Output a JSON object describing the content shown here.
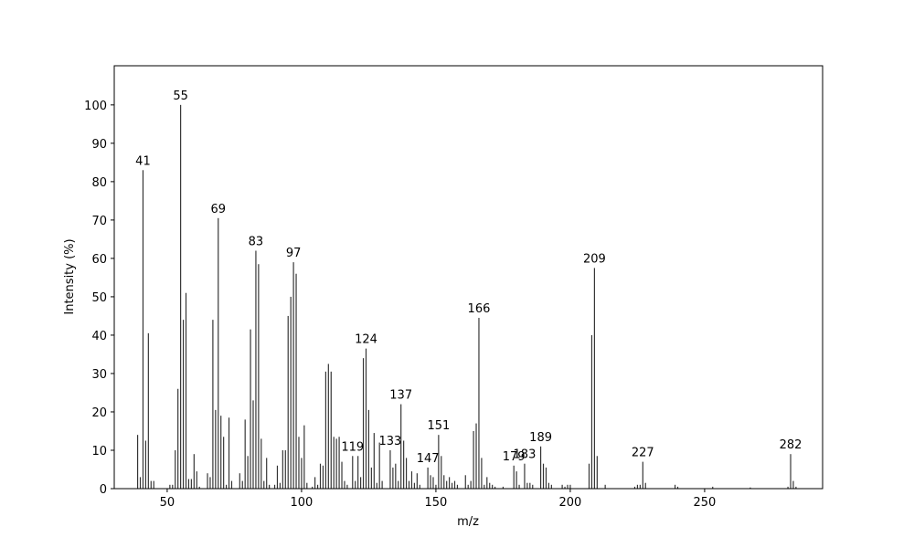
{
  "chart_data": {
    "type": "bar",
    "xlabel": "m/z",
    "ylabel": "Intensity (%)",
    "color": "#333333",
    "x": [
      39,
      40,
      41,
      42,
      43,
      44,
      45,
      51,
      52,
      53,
      54,
      55,
      56,
      57,
      58,
      59,
      60,
      61,
      62,
      65,
      66,
      67,
      68,
      69,
      70,
      71,
      72,
      73,
      74,
      77,
      78,
      79,
      80,
      81,
      82,
      83,
      84,
      85,
      86,
      87,
      88,
      90,
      91,
      92,
      93,
      94,
      95,
      96,
      97,
      98,
      99,
      100,
      101,
      102,
      104,
      105,
      106,
      107,
      108,
      109,
      110,
      111,
      112,
      113,
      114,
      115,
      116,
      117,
      119,
      120,
      121,
      122,
      123,
      124,
      125,
      126,
      127,
      128,
      129,
      130,
      133,
      134,
      135,
      136,
      137,
      138,
      139,
      140,
      141,
      142,
      143,
      144,
      147,
      148,
      149,
      150,
      151,
      152,
      153,
      154,
      155,
      156,
      157,
      158,
      161,
      162,
      163,
      164,
      165,
      166,
      167,
      168,
      169,
      170,
      171,
      172,
      175,
      179,
      180,
      181,
      183,
      184,
      185,
      186,
      189,
      190,
      191,
      192,
      193,
      197,
      198,
      199,
      200,
      207,
      208,
      209,
      210,
      213,
      224,
      225,
      226,
      227,
      228,
      239,
      240,
      253,
      267,
      281,
      282,
      283,
      284
    ],
    "values": [
      14,
      3,
      83,
      12.5,
      40.5,
      2,
      2,
      1,
      1,
      10,
      26,
      100,
      44,
      51,
      2.5,
      2.5,
      9,
      4.5,
      0.5,
      4,
      3,
      44,
      20.5,
      70.5,
      19,
      13.5,
      1,
      18.5,
      2,
      4,
      2,
      18,
      8.5,
      41.5,
      23,
      62,
      58.5,
      13,
      2,
      8,
      1,
      1,
      6,
      1.5,
      10,
      10,
      45,
      50,
      59,
      56,
      13.5,
      8,
      16.5,
      1.5,
      0.5,
      3,
      1,
      6.5,
      6,
      30.5,
      32.5,
      30.5,
      13.5,
      13,
      13.5,
      7,
      2,
      1,
      8.5,
      2,
      8.5,
      3,
      34,
      36.5,
      20.5,
      5.5,
      14.5,
      1.5,
      12,
      2,
      10,
      5.5,
      6.5,
      2,
      22,
      12.5,
      8,
      2,
      4.5,
      1.5,
      4,
      1,
      5.5,
      3.5,
      3,
      1,
      14,
      8.5,
      3.5,
      2,
      3,
      1.5,
      2,
      1,
      3.5,
      1,
      2,
      15,
      17,
      44.5,
      8,
      1,
      3,
      1.5,
      1,
      0.5,
      0.5,
      6,
      4.5,
      1,
      6.5,
      1.5,
      1.5,
      1,
      11,
      6.5,
      5.5,
      1.5,
      1,
      1,
      0.5,
      1,
      1,
      6.5,
      40,
      57.5,
      8.5,
      1,
      0.5,
      1,
      1,
      7,
      1.5,
      1,
      0.5,
      0.5,
      0.3,
      0.5,
      9,
      2,
      0.5
    ],
    "annotations": [
      41,
      55,
      69,
      83,
      97,
      119,
      124,
      133,
      137,
      147,
      151,
      166,
      179,
      183,
      189,
      209,
      227,
      282
    ],
    "xlim": [
      30.3,
      293.9
    ],
    "ylim": [
      0,
      110.2
    ],
    "xticks": [
      50,
      100,
      150,
      200,
      250
    ],
    "yticks": [
      0,
      10,
      20,
      30,
      40,
      50,
      60,
      70,
      80,
      90,
      100
    ]
  }
}
